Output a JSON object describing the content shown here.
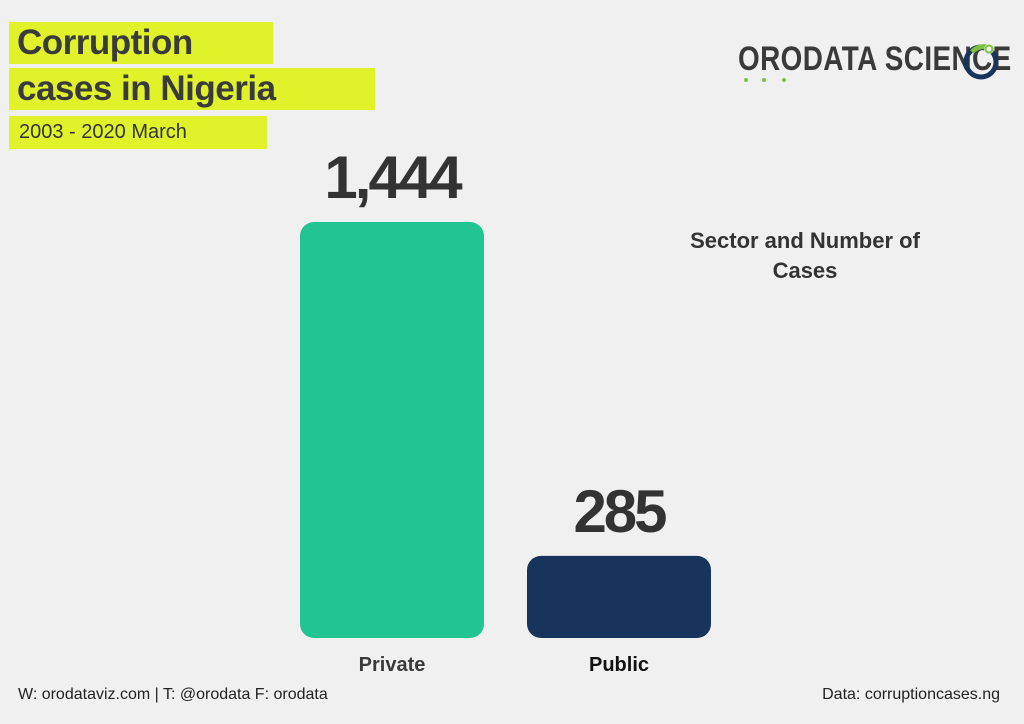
{
  "header": {
    "title_line1": "Corruption",
    "title_line2": "cases in Nigeria",
    "subtitle": "2003 - 2020 March"
  },
  "logo": {
    "text": "ORODATA SCIENCE",
    "icon": "orodata-ring-icon"
  },
  "legend_title": "Sector and Number of Cases",
  "footer": {
    "left": "W: orodataviz.com | T: @orodata F: orodata",
    "right": "Data: corruptioncases.ng"
  },
  "chart_data": {
    "type": "bar",
    "categories": [
      "Private",
      "Public"
    ],
    "values": [
      1444,
      285
    ],
    "value_labels": [
      "1,444",
      "285"
    ],
    "colors": [
      "#22c592",
      "#17355c"
    ],
    "title": "Sector and Number of Cases",
    "xlabel": "",
    "ylabel": "",
    "grid": false
  }
}
